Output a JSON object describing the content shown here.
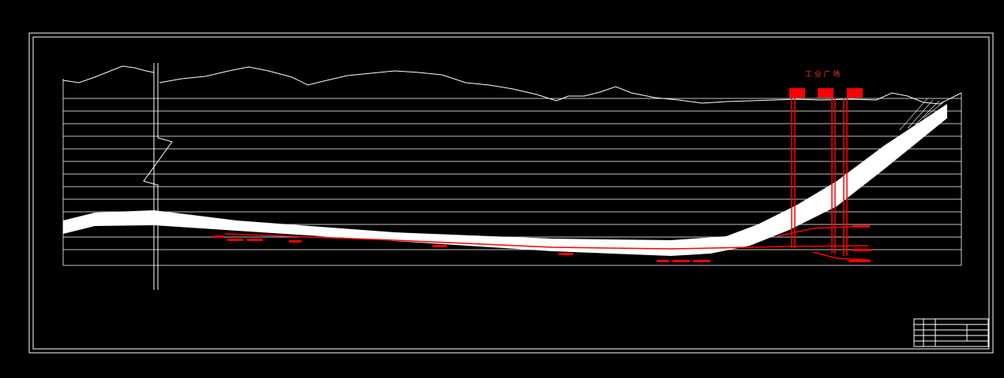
{
  "labels": {
    "site": "工 业 广 场"
  }
}
